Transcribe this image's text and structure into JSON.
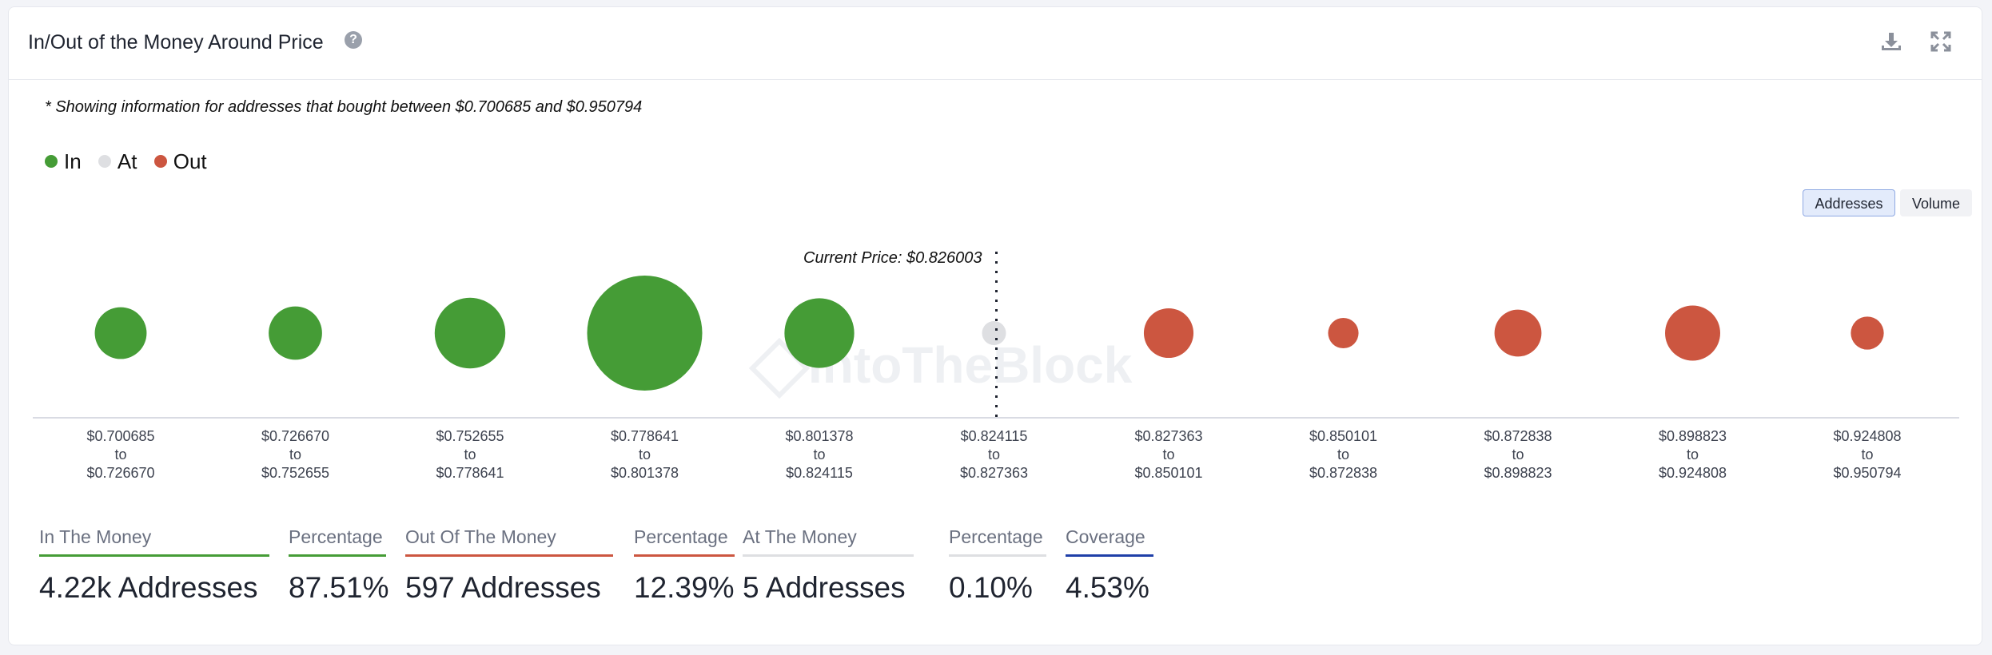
{
  "header": {
    "title": "In/Out of the Money Around Price",
    "help_icon": "question-circle-icon",
    "download_icon": "download-icon",
    "expand_icon": "expand-icon"
  },
  "note": "* Showing information for addresses that bought between $0.700685 and $0.950794",
  "legend": [
    {
      "label": "In",
      "color": "#459c36"
    },
    {
      "label": "At",
      "color": "#dedfe2"
    },
    {
      "label": "Out",
      "color": "#cc5640"
    }
  ],
  "toggle": {
    "addresses": "Addresses",
    "volume": "Volume",
    "selected": "Addresses"
  },
  "watermark": "IntoTheBlock",
  "chart_data": {
    "type": "bubble",
    "current_price_label": "Current Price: $0.826003",
    "current_price": 0.826003,
    "categories": [
      {
        "from": "$0.700685",
        "to": "$0.726670",
        "status": "In"
      },
      {
        "from": "$0.726670",
        "to": "$0.752655",
        "status": "In"
      },
      {
        "from": "$0.752655",
        "to": "$0.778641",
        "status": "In"
      },
      {
        "from": "$0.778641",
        "to": "$0.801378",
        "status": "In"
      },
      {
        "from": "$0.801378",
        "to": "$0.824115",
        "status": "In"
      },
      {
        "from": "$0.824115",
        "to": "$0.827363",
        "status": "At"
      },
      {
        "from": "$0.827363",
        "to": "$0.850101",
        "status": "Out"
      },
      {
        "from": "$0.850101",
        "to": "$0.872838",
        "status": "Out"
      },
      {
        "from": "$0.872838",
        "to": "$0.898823",
        "status": "Out"
      },
      {
        "from": "$0.898823",
        "to": "$0.924808",
        "status": "Out"
      },
      {
        "from": "$0.924808",
        "to": "$0.950794",
        "status": "Out"
      }
    ],
    "relative_addresses": [
      420,
      445,
      780,
      2070,
      760,
      5,
      385,
      145,
      345,
      475,
      170
    ],
    "legend_position": "top-left"
  },
  "stats": [
    {
      "label": "In The Money",
      "value": "4.22k Addresses",
      "color": "#459c36"
    },
    {
      "label": "Percentage",
      "value": "87.51%",
      "color": "#459c36"
    },
    {
      "label": "Out Of The Money",
      "value": "597 Addresses",
      "color": "#cc5640"
    },
    {
      "label": "Percentage",
      "value": "12.39%",
      "color": "#cc5640"
    },
    {
      "label": "At The Money",
      "value": "5 Addresses",
      "color": "#dedfe2"
    },
    {
      "label": "Percentage",
      "value": "0.10%",
      "color": "#dedfe2"
    },
    {
      "label": "Coverage",
      "value": "4.53%",
      "color": "#1f3fa8"
    }
  ]
}
